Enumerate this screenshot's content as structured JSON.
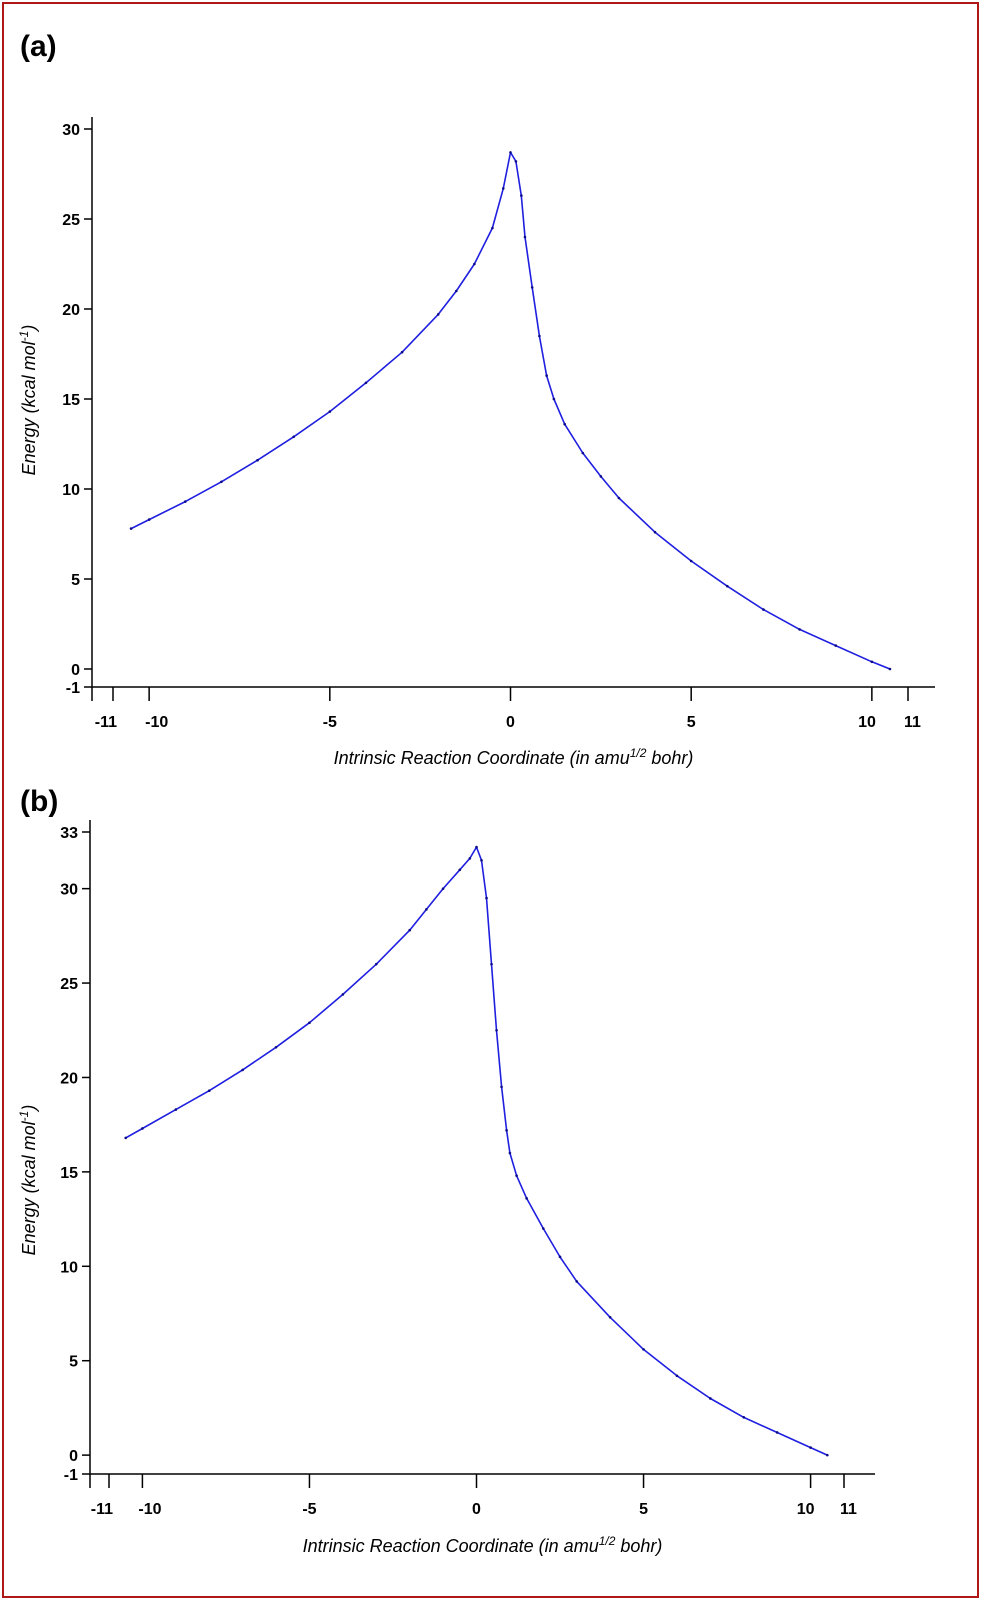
{
  "chart_data": [
    {
      "panel": "(a)",
      "type": "line",
      "xlabel": "Intrinsic Reaction Coordinate (in amu1/2 bohr)",
      "xlabel_parts": [
        "Intrinsic Reaction Coordinate (in amu",
        "1/2",
        " bohr)"
      ],
      "ylabel": "Energy (kcal mol-1)",
      "ylabel_parts": [
        "Energy (kcal mol",
        "-1",
        ")"
      ],
      "xlim": [
        -11,
        11
      ],
      "ylim": [
        -1,
        30
      ],
      "xticks": [
        -11,
        -10,
        -5,
        0,
        5,
        10,
        11
      ],
      "yticks": [
        -1,
        0,
        5,
        10,
        15,
        20,
        25,
        30
      ],
      "series": [
        {
          "color": "#1f1fe0",
          "x": [
            -10.5,
            -10,
            -9,
            -8,
            -7,
            -6,
            -5,
            -4,
            -3,
            -2,
            -1.5,
            -1,
            -0.5,
            -0.2,
            0,
            0.15,
            0.3,
            0.4,
            0.6,
            0.8,
            1,
            1.2,
            1.5,
            2,
            2.5,
            3,
            4,
            5,
            6,
            7,
            8,
            9,
            10,
            10.5
          ],
          "y": [
            7.8,
            8.3,
            9.3,
            10.4,
            11.6,
            12.9,
            14.3,
            15.9,
            17.6,
            19.7,
            21.0,
            22.5,
            24.5,
            26.7,
            28.7,
            28.2,
            26.3,
            24.0,
            21.2,
            18.5,
            16.3,
            15.0,
            13.6,
            12.0,
            10.7,
            9.5,
            7.6,
            6.0,
            4.6,
            3.3,
            2.2,
            1.3,
            0.4,
            0.0
          ]
        }
      ]
    },
    {
      "panel": "(b)",
      "type": "line",
      "xlabel": "Intrinsic Reaction Coordinate (in amu1/2 bohr)",
      "xlabel_parts": [
        "Intrinsic Reaction Coordinate (in amu",
        "1/2",
        " bohr)"
      ],
      "ylabel": "Energy (kcal mol-1)",
      "ylabel_parts": [
        "Energy (kcal mol",
        "-1",
        ")"
      ],
      "xlim": [
        -11,
        11
      ],
      "ylim": [
        -1,
        33
      ],
      "xticks": [
        -11,
        -10,
        -5,
        0,
        5,
        10,
        11
      ],
      "yticks": [
        -1,
        0,
        5,
        10,
        15,
        20,
        25,
        30,
        33
      ],
      "series": [
        {
          "color": "#1f1fe0",
          "x": [
            -10.5,
            -10,
            -9,
            -8,
            -7,
            -6,
            -5,
            -4,
            -3,
            -2,
            -1.5,
            -1,
            -0.5,
            -0.2,
            0,
            0.15,
            0.3,
            0.45,
            0.6,
            0.75,
            0.9,
            1,
            1.2,
            1.5,
            2,
            2.5,
            3,
            4,
            5,
            6,
            7,
            8,
            9,
            10,
            10.5
          ],
          "y": [
            16.8,
            17.3,
            18.3,
            19.3,
            20.4,
            21.6,
            22.9,
            24.4,
            26.0,
            27.8,
            28.9,
            30.0,
            31.0,
            31.6,
            32.2,
            31.5,
            29.5,
            26.0,
            22.5,
            19.5,
            17.2,
            16.0,
            14.8,
            13.6,
            12.0,
            10.5,
            9.2,
            7.3,
            5.6,
            4.2,
            3.0,
            2.0,
            1.2,
            0.4,
            0.0
          ]
        }
      ]
    }
  ]
}
